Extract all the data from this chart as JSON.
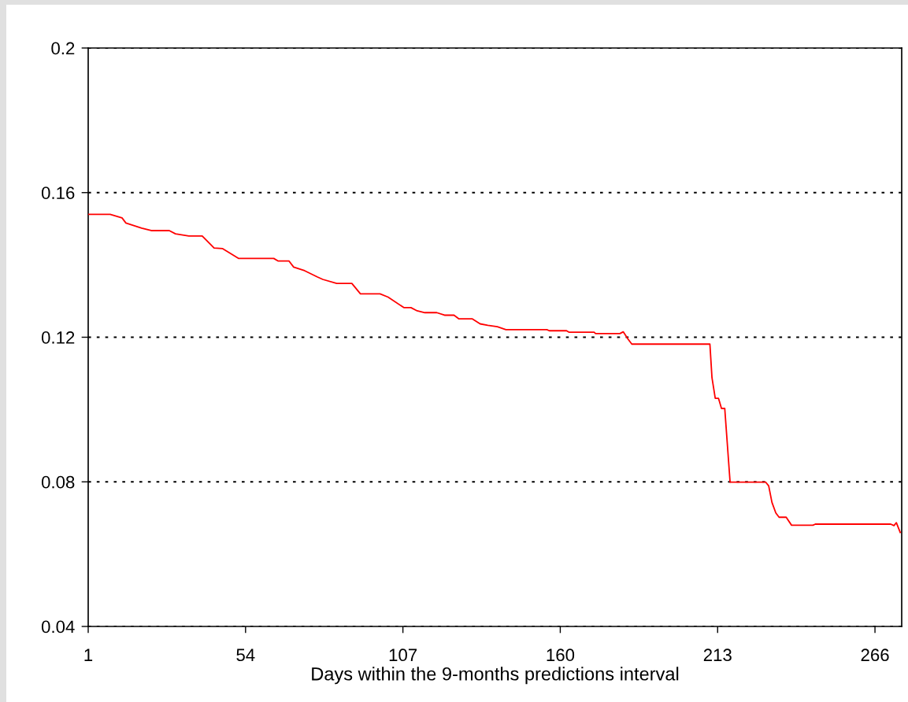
{
  "chart_data": {
    "type": "line",
    "xlabel": "Days within the 9-months predictions interval",
    "x": [
      1,
      8.4,
      12.4,
      13.7,
      19.0,
      22.2,
      28.3,
      30.4,
      34.9,
      39.4,
      43.4,
      46.3,
      51.6,
      63.5,
      64.9,
      68.6,
      70.2,
      73.9,
      78.1,
      80.0,
      84.7,
      89.8,
      92.7,
      99.3,
      102.0,
      107.3,
      109.7,
      111.8,
      114.4,
      118.4,
      121.0,
      124.2,
      125.8,
      130.3,
      133.0,
      135.6,
      138.8,
      141.7,
      155.5,
      156.3,
      162.1,
      162.9,
      171.4,
      171.9,
      180.1,
      181.2,
      182.8,
      184.1,
      210.4,
      211.1,
      212.2,
      213.3,
      214.3,
      215.4,
      217.2,
      229.2,
      230.2,
      231.3,
      232.6,
      233.7,
      236.1,
      237.9,
      245.1,
      245.9,
      271.3,
      272.4,
      273.2,
      274.5
    ],
    "series": [
      {
        "color": "#ff0000",
        "values": [
          0.154,
          0.154,
          0.153,
          0.1516,
          0.1502,
          0.1495,
          0.1495,
          0.1486,
          0.148,
          0.148,
          0.1447,
          0.1445,
          0.1418,
          0.1418,
          0.1411,
          0.1411,
          0.1394,
          0.1384,
          0.1367,
          0.136,
          0.1349,
          0.1349,
          0.132,
          0.132,
          0.1311,
          0.1282,
          0.1282,
          0.1273,
          0.1268,
          0.1268,
          0.1261,
          0.1261,
          0.1251,
          0.1251,
          0.1237,
          0.1233,
          0.1229,
          0.1221,
          0.1221,
          0.1218,
          0.1218,
          0.1214,
          0.1214,
          0.121,
          0.121,
          0.1215,
          0.1195,
          0.1181,
          0.1181,
          0.1088,
          0.1031,
          0.1031,
          0.1003,
          0.1003,
          0.0799,
          0.0799,
          0.0789,
          0.0743,
          0.0714,
          0.0702,
          0.0702,
          0.068,
          0.068,
          0.0683,
          0.0683,
          0.0679,
          0.0687,
          0.066
        ]
      }
    ],
    "xlim": [
      1,
      275
    ],
    "xticks": [
      1,
      54,
      107,
      160,
      213,
      266
    ],
    "ylim": [
      0.04,
      0.2
    ],
    "yticks": [
      0.04,
      0.08,
      0.12,
      0.16,
      0.2
    ],
    "grid": "y",
    "legend": false,
    "marker": "none",
    "line_style": "solid"
  }
}
